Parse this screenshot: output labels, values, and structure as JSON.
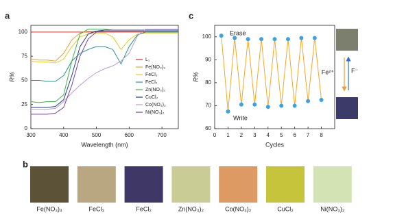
{
  "chart_data": [
    {
      "panel_label": "a",
      "type": "line",
      "x_label": "Wavelength (nm)",
      "y_label": "R%",
      "x": [
        300,
        325,
        350,
        375,
        400,
        425,
        450,
        475,
        500,
        525,
        550,
        575,
        600,
        625,
        650,
        675,
        700,
        725,
        750
      ],
      "xlim": [
        300,
        750
      ],
      "ylim": [
        0,
        107
      ],
      "xticks": [
        300,
        400,
        500,
        600,
        700
      ],
      "yticks": [
        0,
        25,
        50,
        75,
        100
      ],
      "legend": "right",
      "series": [
        {
          "name": "L₁",
          "color": "#d62728",
          "values": [
            100,
            100,
            100,
            100,
            100,
            100,
            100,
            100,
            100,
            100,
            100,
            100,
            100,
            100,
            100,
            100,
            100,
            100,
            100
          ]
        },
        {
          "name": "Fe(NO₃)₃",
          "color": "#f29b30",
          "values": [
            72,
            71,
            71,
            70,
            78,
            92,
            99,
            101,
            101,
            101,
            101,
            101,
            101,
            101,
            101,
            101,
            101,
            101,
            101
          ]
        },
        {
          "name": "FeCl₃",
          "color": "#e8cf1c",
          "values": [
            70,
            69,
            69,
            68,
            72,
            85,
            95,
            98,
            99,
            99,
            95,
            82,
            92,
            98,
            99,
            99,
            99,
            99,
            99
          ]
        },
        {
          "name": "FeCl₂",
          "color": "#22978a",
          "values": [
            50,
            50,
            49,
            49,
            55,
            70,
            78,
            82,
            85,
            85,
            82,
            67,
            85,
            97,
            100,
            100,
            100,
            100,
            100
          ]
        },
        {
          "name": "Zn(NO₃)₂",
          "color": "#3cb44b",
          "values": [
            28,
            27,
            28,
            28,
            35,
            70,
            98,
            103,
            103,
            103,
            102,
            102,
            102,
            102,
            102,
            102,
            102,
            102,
            102
          ]
        },
        {
          "name": "CuCl₂",
          "color": "#1f3a93",
          "values": [
            22,
            22,
            22,
            23,
            30,
            55,
            85,
            98,
            101,
            102,
            102,
            102,
            102,
            102,
            102,
            102,
            102,
            102,
            102
          ]
        },
        {
          "name": "Co(NO₃)₂",
          "color": "#b79ddb",
          "values": [
            20,
            20,
            20,
            21,
            28,
            37,
            45,
            52,
            58,
            62,
            65,
            70,
            78,
            96,
            103,
            103,
            103,
            103,
            103
          ]
        },
        {
          "name": "Ni(NO₃)₂",
          "color": "#7b3f9e",
          "values": [
            15,
            15,
            15,
            16,
            22,
            45,
            75,
            93,
            100,
            101,
            101,
            101,
            101,
            101,
            101,
            101,
            101,
            101,
            101
          ]
        }
      ]
    },
    {
      "panel_label": "c",
      "type": "line",
      "x_label": "Cycles",
      "y_label": "R%",
      "x": [
        0.5,
        1,
        1.5,
        2,
        2.5,
        3,
        3.5,
        4,
        4.5,
        5,
        5.5,
        6,
        6.5,
        7,
        7.5,
        8
      ],
      "xlim": [
        0,
        9
      ],
      "ylim": [
        60,
        105
      ],
      "xticks": [
        0,
        1,
        2,
        3,
        4,
        5,
        6,
        7,
        8
      ],
      "yticks": [
        60,
        70,
        80,
        90,
        100
      ],
      "markers": true,
      "marker_color": "#3ba3e2",
      "annotations": [
        "Erase",
        "Write",
        "Fe²⁺",
        "F⁻"
      ],
      "series": [
        {
          "color": "#f5a623",
          "values": [
            100.5,
            67.5,
            99.5,
            70.5,
            99,
            70.5,
            99,
            69.5,
            99,
            70,
            99,
            70,
            99.5,
            72,
            99.5,
            72.5
          ]
        }
      ]
    }
  ],
  "swatch_panel": {
    "label": "b",
    "items": [
      {
        "label": "Fe(NO₃)₃",
        "color": "#5b5237"
      },
      {
        "label": "FeCl₃",
        "color": "#b9a782"
      },
      {
        "label": "FeCl₂",
        "color": "#3f3765"
      },
      {
        "label": "Zn(NO₃)₂",
        "color": "#c9cc95"
      },
      {
        "label": "Co(NO₃)₂",
        "color": "#dd9a62"
      },
      {
        "label": "CuCl₂",
        "color": "#c6c43a"
      },
      {
        "label": "Ni(NO₃)₂",
        "color": "#d3e3b4"
      }
    ]
  }
}
